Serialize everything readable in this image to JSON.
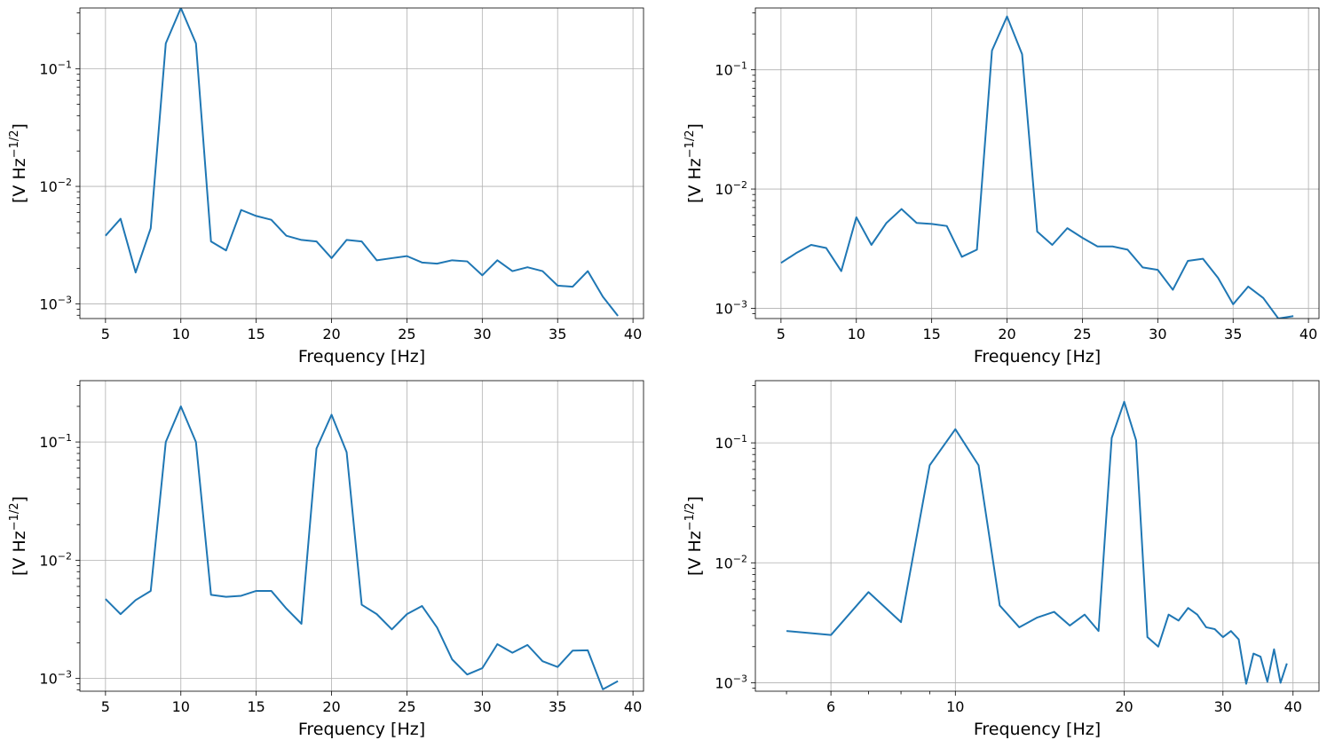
{
  "chart_data": [
    {
      "type": "line",
      "xlabel": "Frequency [Hz]",
      "ylabel_base": "[V Hz",
      "ylabel_exp": "−1/2",
      "ylabel_close": "]",
      "xscale": "linear",
      "yscale": "log",
      "xlim": [
        3.3,
        40.7
      ],
      "ylim": [
        0.00075,
        0.33
      ],
      "xticks": [
        5,
        10,
        15,
        20,
        25,
        30,
        35,
        40
      ],
      "xtick_labels": [
        "5",
        "10",
        "15",
        "20",
        "25",
        "30",
        "35",
        "40"
      ],
      "yticks": [
        0.001,
        0.01,
        0.1
      ],
      "ytick_labels": [
        {
          "base": "10",
          "exp": "−3"
        },
        {
          "base": "10",
          "exp": "−2"
        },
        {
          "base": "10",
          "exp": "−1"
        }
      ],
      "grid": true,
      "line_color": "#1f77b4",
      "x": [
        5,
        6,
        7,
        8,
        9,
        10,
        11,
        12,
        13,
        14,
        15,
        16,
        17,
        18,
        19,
        20,
        21,
        22,
        23,
        24,
        25,
        26,
        27,
        28,
        29,
        30,
        31,
        32,
        33,
        34,
        35,
        36,
        37,
        38,
        39
      ],
      "y": [
        0.0038,
        0.0053,
        0.00185,
        0.0044,
        0.165,
        0.33,
        0.165,
        0.0034,
        0.00285,
        0.0063,
        0.0056,
        0.0052,
        0.0038,
        0.0035,
        0.0034,
        0.00245,
        0.0035,
        0.0034,
        0.00235,
        0.00245,
        0.00255,
        0.00225,
        0.0022,
        0.00235,
        0.0023,
        0.00175,
        0.00235,
        0.0019,
        0.00205,
        0.0019,
        0.00143,
        0.0014,
        0.0019,
        0.00115,
        0.00079
      ]
    },
    {
      "type": "line",
      "xlabel": "Frequency [Hz]",
      "ylabel_base": "[V Hz",
      "ylabel_exp": "−1/2",
      "ylabel_close": "]",
      "xscale": "linear",
      "yscale": "log",
      "xlim": [
        3.3,
        40.7
      ],
      "ylim": [
        0.00082,
        0.33
      ],
      "xticks": [
        5,
        10,
        15,
        20,
        25,
        30,
        35,
        40
      ],
      "xtick_labels": [
        "5",
        "10",
        "15",
        "20",
        "25",
        "30",
        "35",
        "40"
      ],
      "yticks": [
        0.001,
        0.01,
        0.1
      ],
      "ytick_labels": [
        {
          "base": "10",
          "exp": "−3"
        },
        {
          "base": "10",
          "exp": "−2"
        },
        {
          "base": "10",
          "exp": "−1"
        }
      ],
      "grid": true,
      "line_color": "#1f77b4",
      "x": [
        5,
        6,
        7,
        8,
        9,
        10,
        11,
        12,
        13,
        14,
        15,
        16,
        17,
        18,
        19,
        20,
        21,
        22,
        23,
        24,
        25,
        26,
        27,
        28,
        29,
        30,
        31,
        32,
        33,
        34,
        35,
        36,
        37,
        38,
        39
      ],
      "y": [
        0.0024,
        0.0029,
        0.0034,
        0.0032,
        0.00205,
        0.0058,
        0.0034,
        0.0052,
        0.0068,
        0.0052,
        0.0051,
        0.0049,
        0.0027,
        0.0031,
        0.145,
        0.28,
        0.135,
        0.0044,
        0.0034,
        0.0047,
        0.0039,
        0.0033,
        0.0033,
        0.0031,
        0.0022,
        0.0021,
        0.00143,
        0.0025,
        0.0026,
        0.0018,
        0.00108,
        0.00152,
        0.00122,
        0.00082,
        0.00086
      ]
    },
    {
      "type": "line",
      "xlabel": "Frequency [Hz]",
      "ylabel_base": "[V Hz",
      "ylabel_exp": "−1/2",
      "ylabel_close": "]",
      "xscale": "linear",
      "yscale": "log",
      "xlim": [
        3.3,
        40.7
      ],
      "ylim": [
        0.00078,
        0.33
      ],
      "xticks": [
        5,
        10,
        15,
        20,
        25,
        30,
        35,
        40
      ],
      "xtick_labels": [
        "5",
        "10",
        "15",
        "20",
        "25",
        "30",
        "35",
        "40"
      ],
      "yticks": [
        0.001,
        0.01,
        0.1
      ],
      "ytick_labels": [
        {
          "base": "10",
          "exp": "−3"
        },
        {
          "base": "10",
          "exp": "−2"
        },
        {
          "base": "10",
          "exp": "−1"
        }
      ],
      "grid": true,
      "line_color": "#1f77b4",
      "x": [
        5,
        6,
        7,
        8,
        9,
        10,
        11,
        12,
        13,
        14,
        15,
        16,
        17,
        18,
        19,
        20,
        21,
        22,
        23,
        24,
        25,
        26,
        27,
        28,
        29,
        30,
        31,
        32,
        33,
        34,
        35,
        36,
        37,
        38,
        39
      ],
      "y": [
        0.0047,
        0.0035,
        0.0046,
        0.0055,
        0.1,
        0.2,
        0.1,
        0.0051,
        0.0049,
        0.005,
        0.0055,
        0.0055,
        0.0039,
        0.0029,
        0.088,
        0.17,
        0.082,
        0.0042,
        0.0035,
        0.0026,
        0.0035,
        0.0041,
        0.0027,
        0.00145,
        0.00108,
        0.00122,
        0.00195,
        0.00165,
        0.00192,
        0.0014,
        0.00125,
        0.00172,
        0.00173,
        0.00081,
        0.00095
      ]
    },
    {
      "type": "line",
      "xlabel": "Frequency [Hz]",
      "ylabel_base": "[V Hz",
      "ylabel_exp": "−1/2",
      "ylabel_close": "]",
      "xscale": "log",
      "yscale": "log",
      "xlim": [
        4.4,
        44.5
      ],
      "ylim": [
        0.00085,
        0.33
      ],
      "xticks": [
        6,
        10,
        20,
        30,
        40
      ],
      "xtick_labels": [
        "6",
        "10",
        "20",
        "30",
        "40"
      ],
      "yticks": [
        0.001,
        0.01,
        0.1
      ],
      "ytick_labels": [
        {
          "base": "10",
          "exp": "−3"
        },
        {
          "base": "10",
          "exp": "−2"
        },
        {
          "base": "10",
          "exp": "−1"
        }
      ],
      "grid": true,
      "line_color": "#1f77b4",
      "x": [
        5,
        6,
        7,
        8,
        9,
        10,
        11,
        12,
        13,
        14,
        15,
        16,
        17,
        18,
        19,
        20,
        21,
        22,
        23,
        24,
        25,
        26,
        27,
        28,
        29,
        30,
        31,
        32,
        33,
        34,
        35,
        36,
        37,
        38,
        39
      ],
      "y": [
        0.0027,
        0.0025,
        0.0057,
        0.0032,
        0.065,
        0.13,
        0.065,
        0.0044,
        0.0029,
        0.0035,
        0.0039,
        0.003,
        0.0037,
        0.0027,
        0.11,
        0.22,
        0.105,
        0.0024,
        0.002,
        0.0037,
        0.0033,
        0.0042,
        0.0037,
        0.0029,
        0.0028,
        0.0024,
        0.0027,
        0.0023,
        0.00098,
        0.00175,
        0.00165,
        0.00102,
        0.0019,
        0.001,
        0.00145
      ]
    }
  ]
}
